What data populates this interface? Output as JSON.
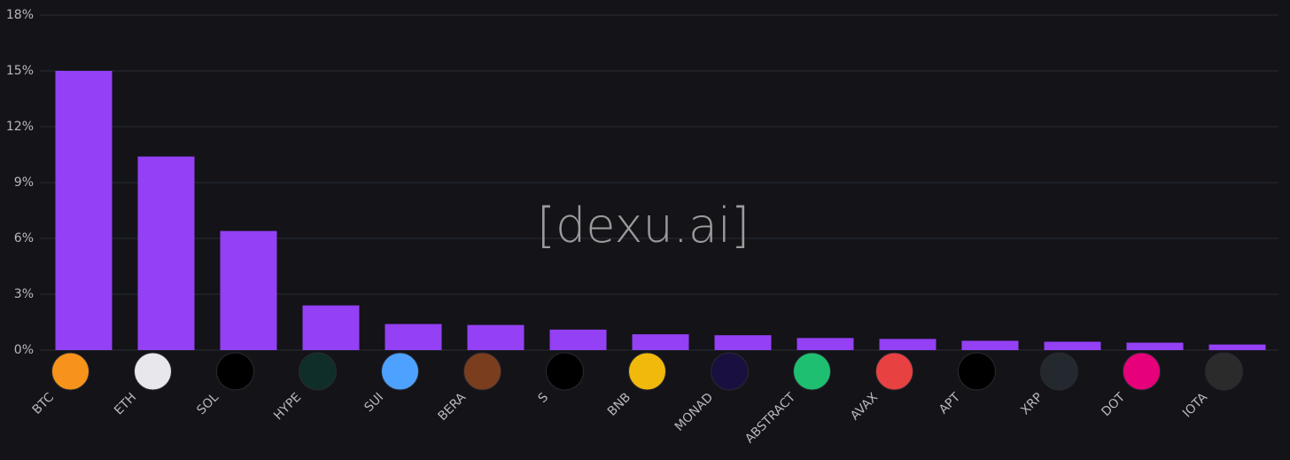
{
  "chart_data": {
    "type": "bar",
    "watermark": "[dexu.ai]",
    "categories": [
      "BTC",
      "ETH",
      "SOL",
      "HYPE",
      "SUI",
      "BERA",
      "S",
      "BNB",
      "MONAD",
      "ABSTRACT",
      "AVAX",
      "APT",
      "XRP",
      "DOT",
      "IOTA"
    ],
    "values": [
      15.0,
      10.4,
      6.4,
      2.4,
      1.4,
      1.35,
      1.1,
      0.85,
      0.8,
      0.65,
      0.6,
      0.5,
      0.45,
      0.4,
      0.3
    ],
    "color": "#9440f5",
    "ylim": [
      0,
      18
    ],
    "yticks": [
      {
        "value": 0,
        "label": "0%"
      },
      {
        "value": 3,
        "label": "3%"
      },
      {
        "value": 6,
        "label": "6%"
      },
      {
        "value": 9,
        "label": "9%"
      },
      {
        "value": 12,
        "label": "12%"
      },
      {
        "value": 15,
        "label": "15%"
      },
      {
        "value": 18,
        "label": "18%"
      }
    ],
    "grid": true
  }
}
